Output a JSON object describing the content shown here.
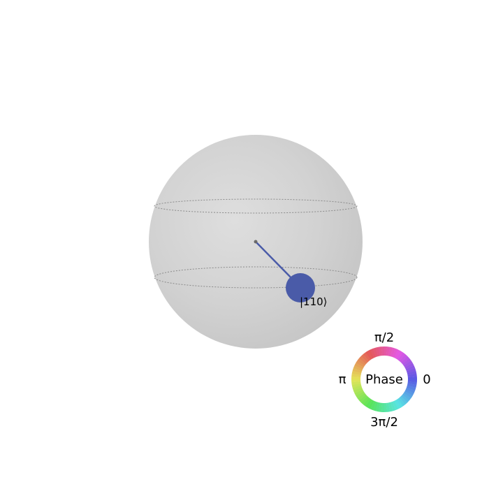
{
  "figure": {
    "state_label": "|110⟩",
    "marker_color": "#4a5ba8",
    "sphere_color": "#d0d0d0",
    "phase_wheel": {
      "center_label": "Phase",
      "top_label": "π/2",
      "left_label": "π",
      "right_label": "0",
      "bottom_label": "3π/2"
    }
  }
}
